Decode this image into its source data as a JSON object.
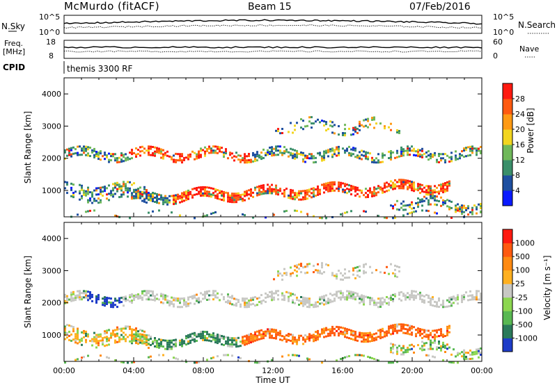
{
  "header": {
    "station": "McMurdo (fitACF)",
    "beam": "Beam 15",
    "date": "07/Feb/2016"
  },
  "params": {
    "nsky_label": "N.Sky",
    "nsky_ticks": [
      "10^5",
      "10^0"
    ],
    "nsearch_label": "N.Search",
    "nsearch_ticks": [
      "10^5",
      "10^0"
    ],
    "freq_label_1": "Freq.",
    "freq_label_2": "[MHz]",
    "freq_ticks": [
      "18",
      "8"
    ],
    "nave_label": "Nave",
    "nave_ticks": [
      "60",
      "0"
    ],
    "cpid_label": "CPID",
    "cpid_text": "themis 3300 RF"
  },
  "chart_data": [
    {
      "type": "heatmap",
      "title": "",
      "ylabel": "Slant Range [km]",
      "xlabel": "",
      "ylim": [
        180,
        4500
      ],
      "yticks": [
        1000,
        2000,
        3000,
        4000
      ],
      "x_tick_labels": [],
      "colorbar": {
        "label": "Power [dB]",
        "ticks": [
          4,
          8,
          12,
          16,
          20,
          24,
          28
        ],
        "colors": [
          "#0a1aff",
          "#1e4fa0",
          "#3a8f6a",
          "#6fb85a",
          "#f2d51f",
          "#ff9a14",
          "#ff5a10",
          "#ff1a10"
        ]
      }
    },
    {
      "type": "heatmap",
      "title": "",
      "ylabel": "Slant Range [km]",
      "xlabel": "Time UT",
      "ylim": [
        180,
        4500
      ],
      "yticks": [
        1000,
        2000,
        3000,
        4000
      ],
      "x_tick_labels": [
        "00:00",
        "04:00",
        "08:00",
        "12:00",
        "16:00",
        "20:00",
        "00:00"
      ],
      "colorbar": {
        "label": "Velocity [m s⁻¹]",
        "ticks": [
          "1000",
          "500",
          "100",
          "25",
          "-25",
          "-100",
          "-500",
          "-1000"
        ],
        "colors": [
          "#1e3cc8",
          "#2a7a5a",
          "#58b852",
          "#8cd650",
          "#c8c8c4",
          "#ffb020",
          "#ff8a12",
          "#ff5a10",
          "#ff1a10"
        ]
      }
    }
  ]
}
